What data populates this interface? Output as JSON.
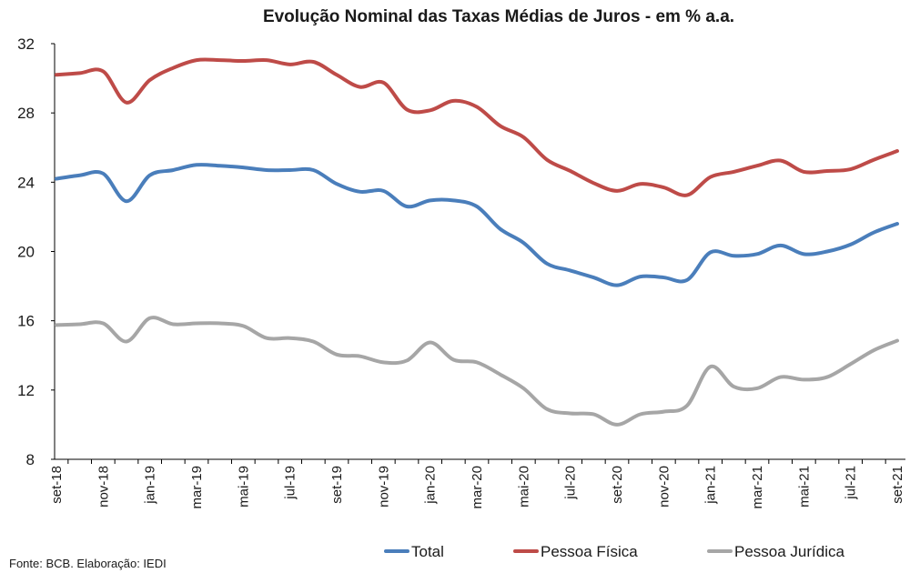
{
  "chart_data": {
    "type": "line",
    "title": "Evolução Nominal das Taxas Médias de Juros  - em % a.a.",
    "source": "Fonte: BCB. Elaboração: IEDI",
    "ylim": [
      8,
      32
    ],
    "yticks": [
      8,
      12,
      16,
      20,
      24,
      28,
      32
    ],
    "grid": false,
    "legend_position": "bottom",
    "months": [
      "set-18",
      "out-18",
      "nov-18",
      "dez-18",
      "jan-19",
      "fev-19",
      "mar-19",
      "abr-19",
      "mai-19",
      "jun-19",
      "jul-19",
      "ago-19",
      "set-19",
      "out-19",
      "nov-19",
      "dez-19",
      "jan-20",
      "fev-20",
      "mar-20",
      "abr-20",
      "mai-20",
      "jun-20",
      "jul-20",
      "ago-20",
      "set-20",
      "out-20",
      "nov-20",
      "dez-20",
      "jan-21",
      "fev-21",
      "mar-21",
      "abr-21",
      "mai-21",
      "jun-21",
      "jul-21",
      "ago-21",
      "set-21"
    ],
    "xtick_labels": [
      {
        "index": 0,
        "label": "set-18"
      },
      {
        "index": 2,
        "label": "nov-18"
      },
      {
        "index": 4,
        "label": "jan-19"
      },
      {
        "index": 6,
        "label": "mar-19"
      },
      {
        "index": 8,
        "label": "mai-19"
      },
      {
        "index": 10,
        "label": "jul-19"
      },
      {
        "index": 12,
        "label": "set-19"
      },
      {
        "index": 14,
        "label": "nov-19"
      },
      {
        "index": 16,
        "label": "jan-20"
      },
      {
        "index": 18,
        "label": "mar-20"
      },
      {
        "index": 20,
        "label": "mai-20"
      },
      {
        "index": 22,
        "label": "jul-20"
      },
      {
        "index": 24,
        "label": "set-20"
      },
      {
        "index": 26,
        "label": "nov-20"
      },
      {
        "index": 28,
        "label": "jan-21"
      },
      {
        "index": 30,
        "label": "mar-21"
      },
      {
        "index": 32,
        "label": "mai-21"
      },
      {
        "index": 34,
        "label": "jul-21"
      },
      {
        "index": 36,
        "label": "set-21"
      }
    ],
    "series": [
      {
        "name": "Total",
        "color": "#4a7ebb",
        "values": [
          24.2,
          24.4,
          24.5,
          22.9,
          24.4,
          24.7,
          25.0,
          24.95,
          24.85,
          24.7,
          24.7,
          24.7,
          23.9,
          23.45,
          23.5,
          22.6,
          22.95,
          22.95,
          22.6,
          21.3,
          20.5,
          19.3,
          18.9,
          18.5,
          18.05,
          18.55,
          18.5,
          18.35,
          19.95,
          19.75,
          19.85,
          20.35,
          19.85,
          20.0,
          20.4,
          21.1,
          21.6
        ]
      },
      {
        "name": "Pessoa Física",
        "color": "#be4b48",
        "values": [
          30.2,
          30.3,
          30.4,
          28.6,
          29.9,
          30.6,
          31.05,
          31.05,
          31.0,
          31.05,
          30.8,
          30.95,
          30.2,
          29.5,
          29.75,
          28.2,
          28.15,
          28.7,
          28.35,
          27.25,
          26.6,
          25.3,
          24.65,
          23.95,
          23.5,
          23.9,
          23.7,
          23.25,
          24.3,
          24.6,
          24.95,
          25.25,
          24.6,
          24.65,
          24.75,
          25.3,
          25.8
        ]
      },
      {
        "name": "Pessoa Jurídica",
        "color": "#a6a6a6",
        "values": [
          15.75,
          15.8,
          15.85,
          14.8,
          16.15,
          15.8,
          15.85,
          15.85,
          15.7,
          15.0,
          15.0,
          14.8,
          14.05,
          13.95,
          13.6,
          13.7,
          14.75,
          13.75,
          13.6,
          12.9,
          12.1,
          10.9,
          10.65,
          10.6,
          10.0,
          10.6,
          10.75,
          11.1,
          13.35,
          12.2,
          12.1,
          12.75,
          12.6,
          12.75,
          13.5,
          14.3,
          14.85
        ]
      }
    ]
  }
}
